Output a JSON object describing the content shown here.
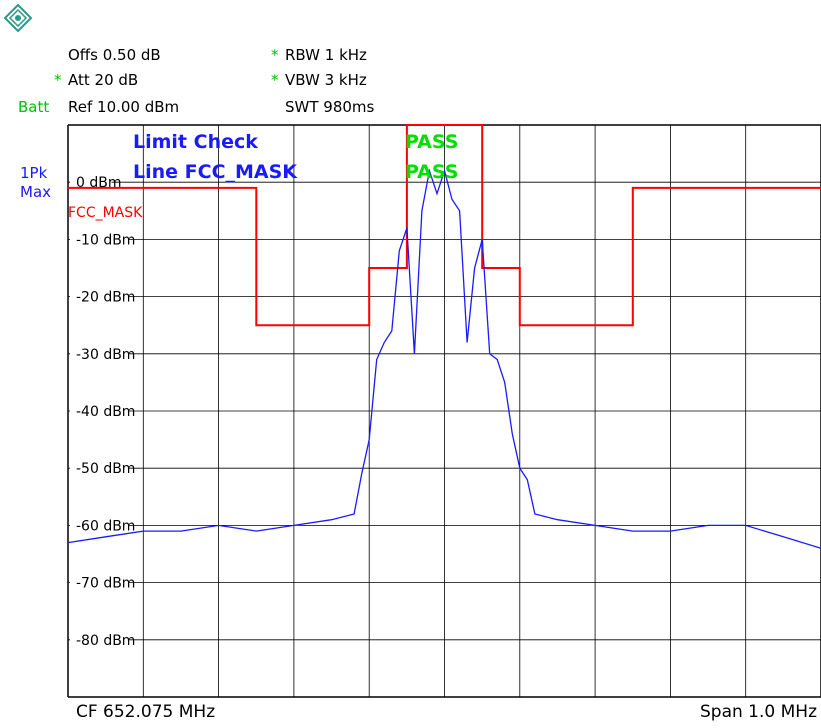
{
  "header": {
    "offs_label": "Offs 0.50 dB",
    "att_star": "*",
    "att_label": "Att  20 dB",
    "ref_prefix": "Batt",
    "ref_label": "Ref  10.00 dBm",
    "rbw_star": "*",
    "rbw_label": "RBW 1 kHz",
    "vbw_star": "*",
    "vbw_label": "VBW 3 kHz",
    "swt_label": "SWT 980ms"
  },
  "trace_info": {
    "line1": "1Pk",
    "line2": "Max"
  },
  "limit_check": {
    "title": "Limit Check",
    "line_label": "Line FCC_MASK",
    "result1": "PASS",
    "result2": "PASS",
    "mask_name": "FCC_MASK"
  },
  "footer": {
    "cf": "CF 652.075 MHz",
    "span": "Span 1.0 MHz"
  },
  "colors": {
    "trace": "#1a1aff",
    "mask": "#ff0000",
    "pass": "#00e000",
    "grid": "#000000"
  },
  "icons": {
    "logo": "rohde-schwarz-logo-icon"
  },
  "chart_data": {
    "type": "line",
    "title": "",
    "xlabel": "",
    "ylabel": "",
    "x_units": "MHz offset from CF",
    "xlim": [
      -0.5,
      0.5
    ],
    "ylim": [
      -90,
      10
    ],
    "y_ticks": [
      "0 dBm",
      "-10 dBm",
      "-20 dBm",
      "-30 dBm",
      "-40 dBm",
      "-50 dBm",
      "-60 dBm",
      "-70 dBm",
      "-80 dBm"
    ],
    "grid": true,
    "series": [
      {
        "name": "FCC_MASK",
        "x": [
          -0.5,
          -0.25,
          -0.25,
          -0.1,
          -0.1,
          -0.05,
          -0.05,
          0.05,
          0.05,
          0.1,
          0.1,
          0.25,
          0.25,
          0.5
        ],
        "values": [
          -1,
          -1,
          -25,
          -25,
          -15,
          -15,
          10,
          10,
          -15,
          -15,
          -25,
          -25,
          -1,
          -1
        ]
      },
      {
        "name": "",
        "x": [
          -0.5,
          -0.45,
          -0.4,
          -0.35,
          -0.3,
          -0.25,
          -0.2,
          -0.15,
          -0.12,
          -0.11,
          -0.1,
          -0.09,
          -0.08,
          -0.07,
          -0.06,
          -0.05,
          -0.04,
          -0.03,
          -0.02,
          -0.01,
          0.0,
          0.01,
          0.02,
          0.03,
          0.04,
          0.05,
          0.06,
          0.07,
          0.08,
          0.09,
          0.1,
          0.11,
          0.12,
          0.15,
          0.2,
          0.25,
          0.3,
          0.35,
          0.4,
          0.45,
          0.5
        ],
        "values": [
          -63,
          -62,
          -61,
          -61,
          -60,
          -61,
          -60,
          -59,
          -58,
          -51,
          -45,
          -31,
          -28,
          -26,
          -12,
          -8,
          -30,
          -5,
          2,
          -2,
          2,
          -3,
          -5,
          -28,
          -15,
          -10,
          -30,
          -31,
          -35,
          -44,
          -50,
          -52,
          -58,
          -59,
          -60,
          -61,
          -61,
          -60,
          -60,
          -62,
          -64
        ]
      }
    ]
  }
}
